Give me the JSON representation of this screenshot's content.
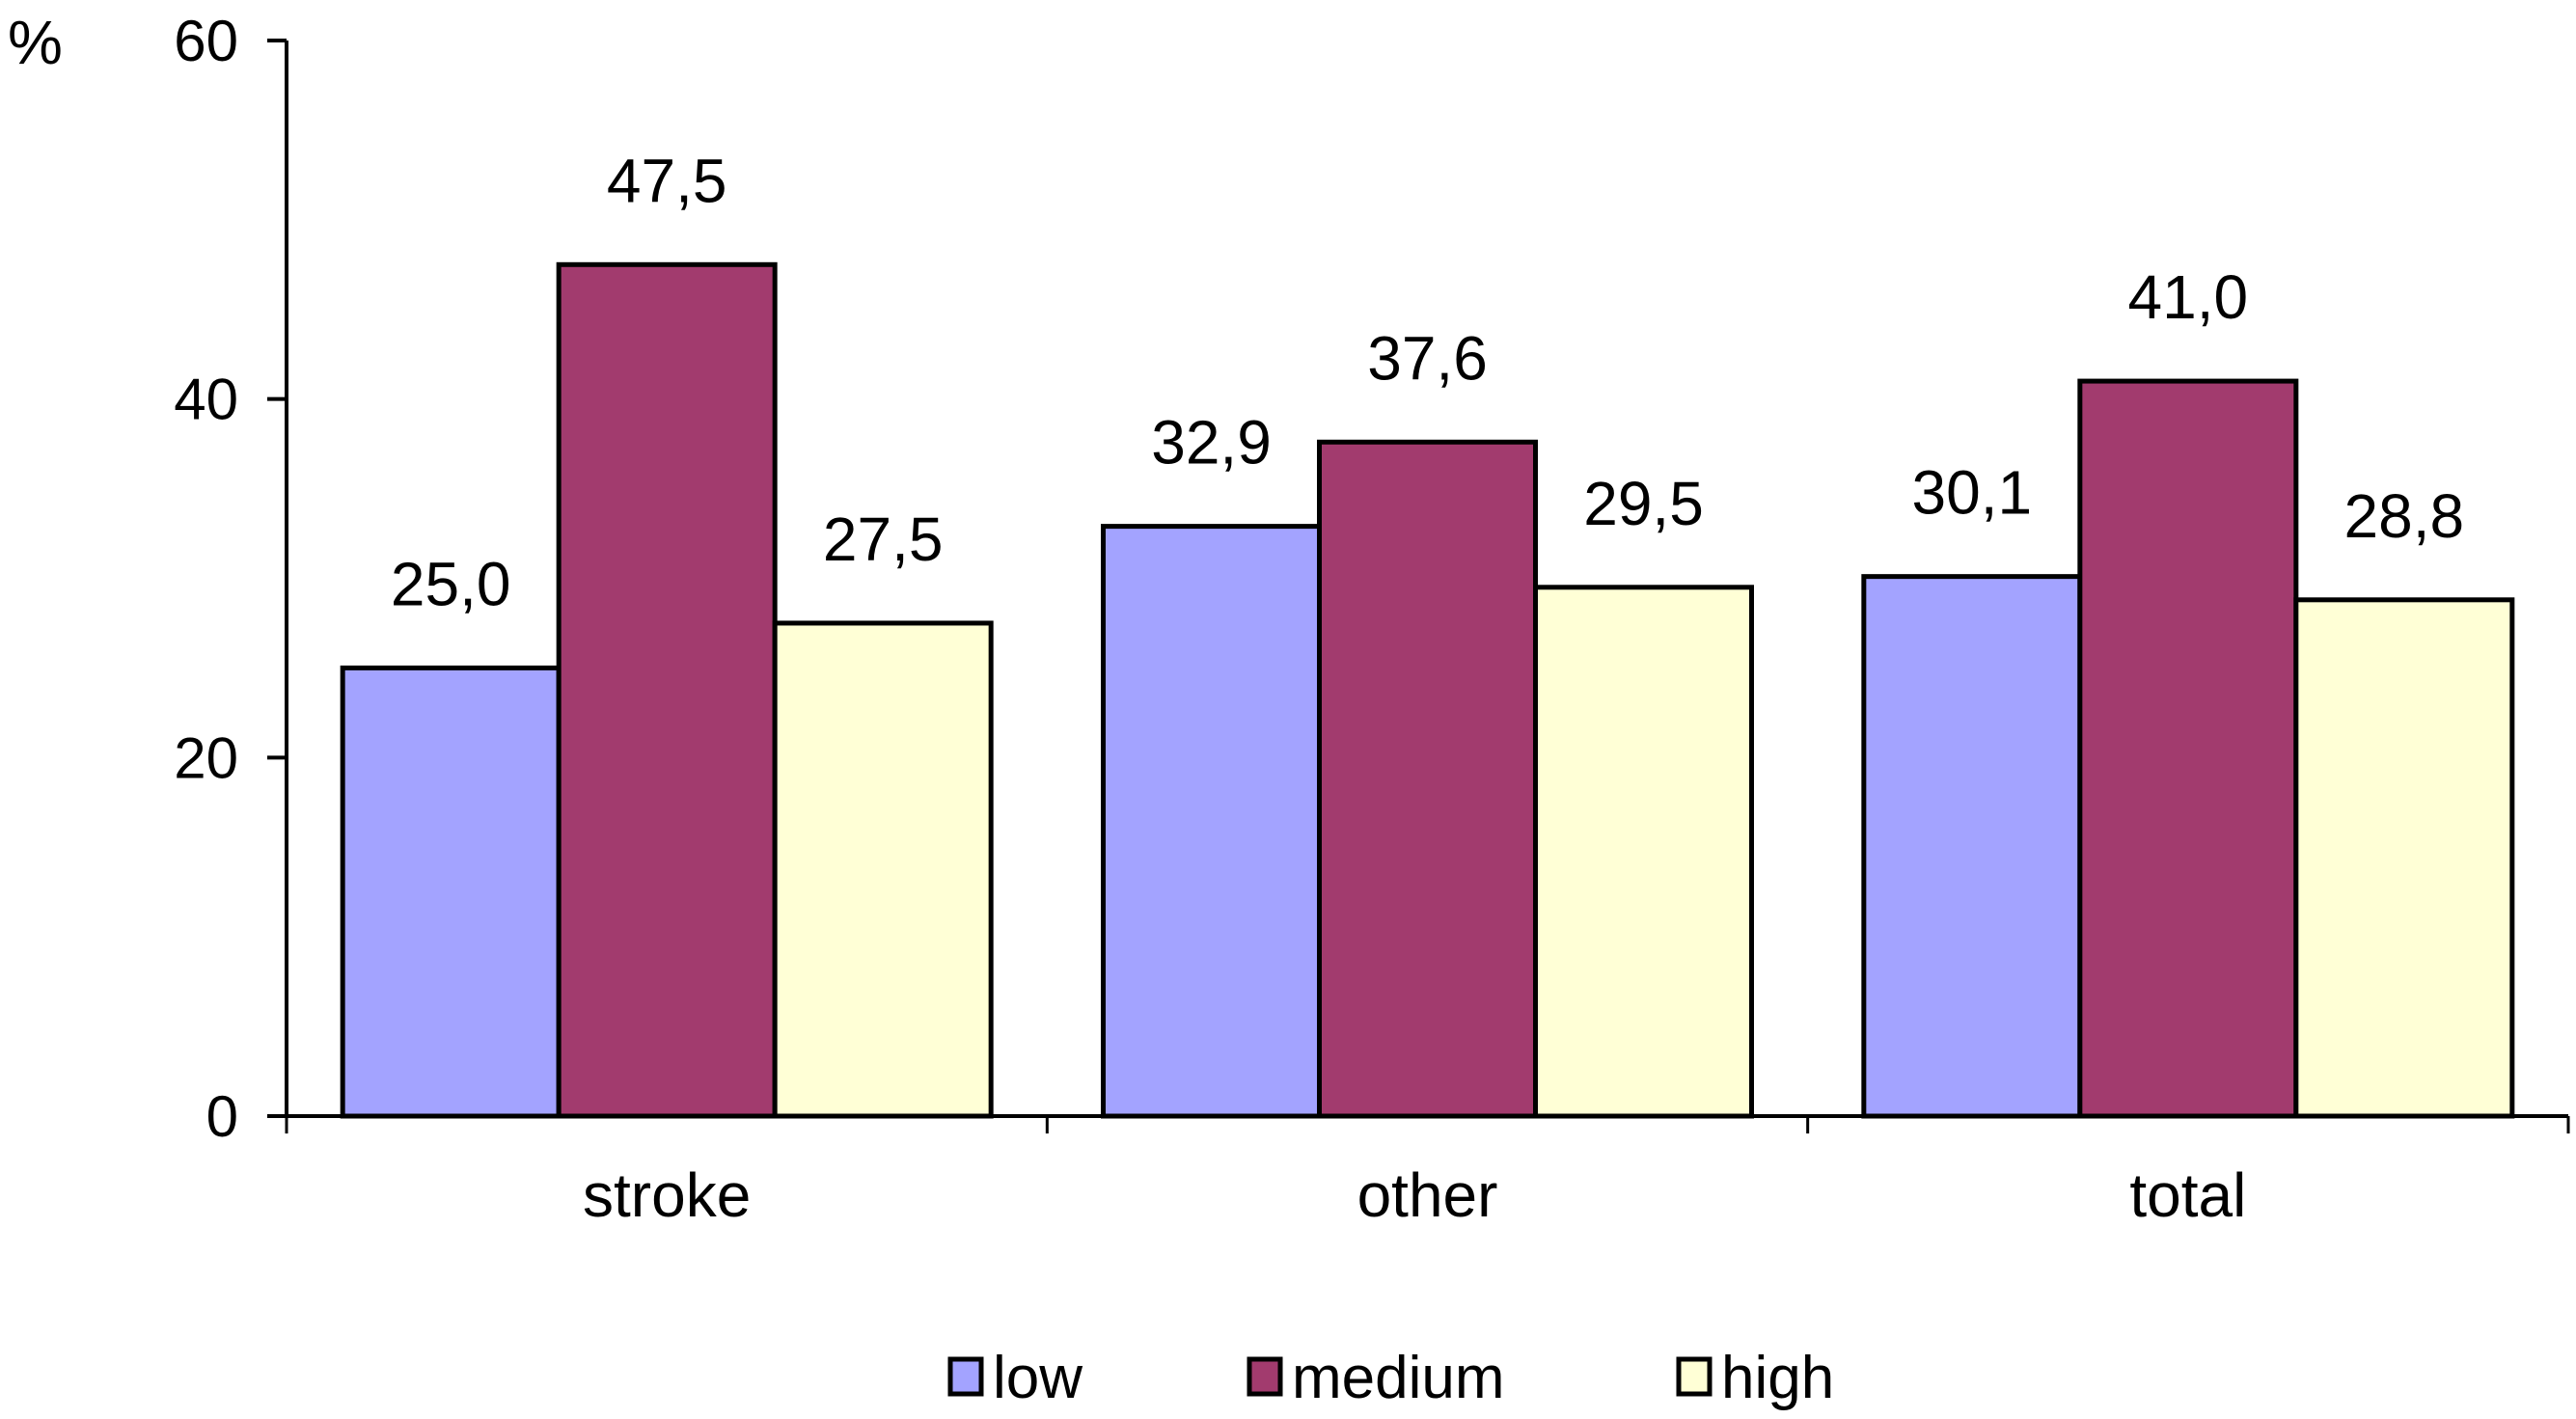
{
  "chart_data": {
    "type": "bar",
    "title": "",
    "xlabel": "",
    "ylabel": "%",
    "ylim": [
      0,
      60
    ],
    "yticks": [
      0,
      20,
      40,
      60
    ],
    "grid": false,
    "legend_position": "bottom",
    "categories": [
      "stroke",
      "other",
      "total"
    ],
    "series": [
      {
        "name": "low",
        "color": "#a3a3ff",
        "values": [
          25.0,
          32.9,
          30.1
        ],
        "labels": [
          "25,0",
          "32,9",
          "30,1"
        ]
      },
      {
        "name": "medium",
        "color": "#a23b6e",
        "values": [
          47.5,
          37.6,
          41.0
        ],
        "labels": [
          "47,5",
          "37,6",
          "41,0"
        ]
      },
      {
        "name": "high",
        "color": "#ffffd6",
        "values": [
          27.5,
          29.5,
          28.8
        ],
        "labels": [
          "27,5",
          "29,5",
          "28,8"
        ]
      }
    ]
  }
}
